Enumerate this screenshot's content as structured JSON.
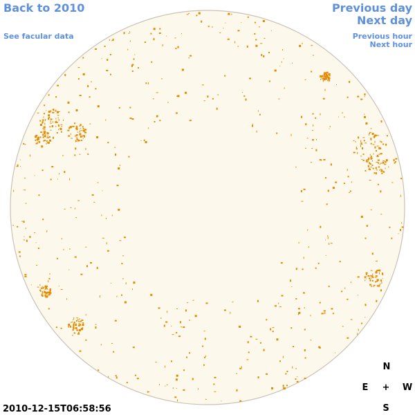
{
  "header": {
    "back_link": "Back to 2010",
    "facular_link": "See facular data",
    "previous_day": "Previous day",
    "next_day": "Next day",
    "previous_hour": "Previous hour",
    "next_hour": "Next hour"
  },
  "timestamp": "2010-12-15T06:58:56",
  "compass": {
    "north": "N",
    "east": "E",
    "center": "+",
    "west": "W",
    "south": "S"
  }
}
